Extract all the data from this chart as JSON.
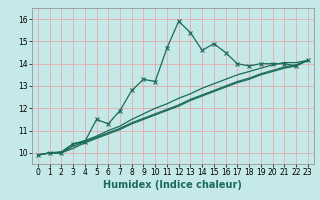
{
  "xlabel": "Humidex (Indice chaleur)",
  "background_color": "#c5e8e8",
  "grid_color": "#e8a0a0",
  "line_color": "#1a6b5a",
  "xlim": [
    -0.5,
    23.5
  ],
  "ylim": [
    9.5,
    16.5
  ],
  "xticks": [
    0,
    1,
    2,
    3,
    4,
    5,
    6,
    7,
    8,
    9,
    10,
    11,
    12,
    13,
    14,
    15,
    16,
    17,
    18,
    19,
    20,
    21,
    22,
    23
  ],
  "yticks": [
    10,
    11,
    12,
    13,
    14,
    15,
    16
  ],
  "curve1_x": [
    0,
    1,
    2,
    3,
    4,
    5,
    6,
    7,
    8,
    9,
    10,
    11,
    12,
    13,
    14,
    15,
    16,
    17,
    18,
    19,
    20,
    21,
    22,
    23
  ],
  "curve1_y": [
    9.9,
    10.0,
    10.0,
    10.4,
    10.5,
    11.5,
    11.3,
    11.9,
    12.8,
    13.3,
    13.2,
    14.7,
    15.9,
    15.4,
    14.6,
    14.9,
    14.5,
    14.0,
    13.9,
    14.0,
    14.0,
    14.0,
    13.9,
    14.15
  ],
  "curve2_x": [
    0,
    1,
    2,
    3,
    4,
    5,
    6,
    7,
    8,
    9,
    10,
    11,
    12,
    13,
    14,
    15,
    16,
    17,
    18,
    19,
    20,
    21,
    22,
    23
  ],
  "curve2_y": [
    9.9,
    10.0,
    10.05,
    10.4,
    10.55,
    10.75,
    11.0,
    11.2,
    11.5,
    11.75,
    12.0,
    12.2,
    12.45,
    12.65,
    12.9,
    13.1,
    13.3,
    13.5,
    13.65,
    13.8,
    13.95,
    14.05,
    14.05,
    14.15
  ],
  "curve3_x": [
    0,
    1,
    2,
    3,
    4,
    5,
    6,
    7,
    8,
    9,
    10,
    11,
    12,
    13,
    14,
    15,
    16,
    17,
    18,
    19,
    20,
    21,
    22,
    23
  ],
  "curve3_y": [
    9.9,
    10.0,
    10.0,
    10.3,
    10.5,
    10.7,
    10.9,
    11.1,
    11.35,
    11.55,
    11.75,
    11.95,
    12.15,
    12.4,
    12.6,
    12.8,
    13.0,
    13.2,
    13.35,
    13.55,
    13.7,
    13.85,
    13.95,
    14.15
  ],
  "curve4_x": [
    0,
    1,
    2,
    3,
    4,
    5,
    6,
    7,
    8,
    9,
    10,
    11,
    12,
    13,
    14,
    15,
    16,
    17,
    18,
    19,
    20,
    21,
    22,
    23
  ],
  "curve4_y": [
    9.9,
    10.0,
    10.0,
    10.2,
    10.45,
    10.65,
    10.85,
    11.05,
    11.3,
    11.5,
    11.7,
    11.9,
    12.1,
    12.35,
    12.55,
    12.75,
    12.95,
    13.15,
    13.3,
    13.5,
    13.65,
    13.8,
    13.9,
    14.15
  ],
  "xlabel_fontsize": 7,
  "tick_fontsize": 5.5,
  "linewidth": 0.9,
  "markersize": 2.5,
  "markeredgewidth": 0.8
}
